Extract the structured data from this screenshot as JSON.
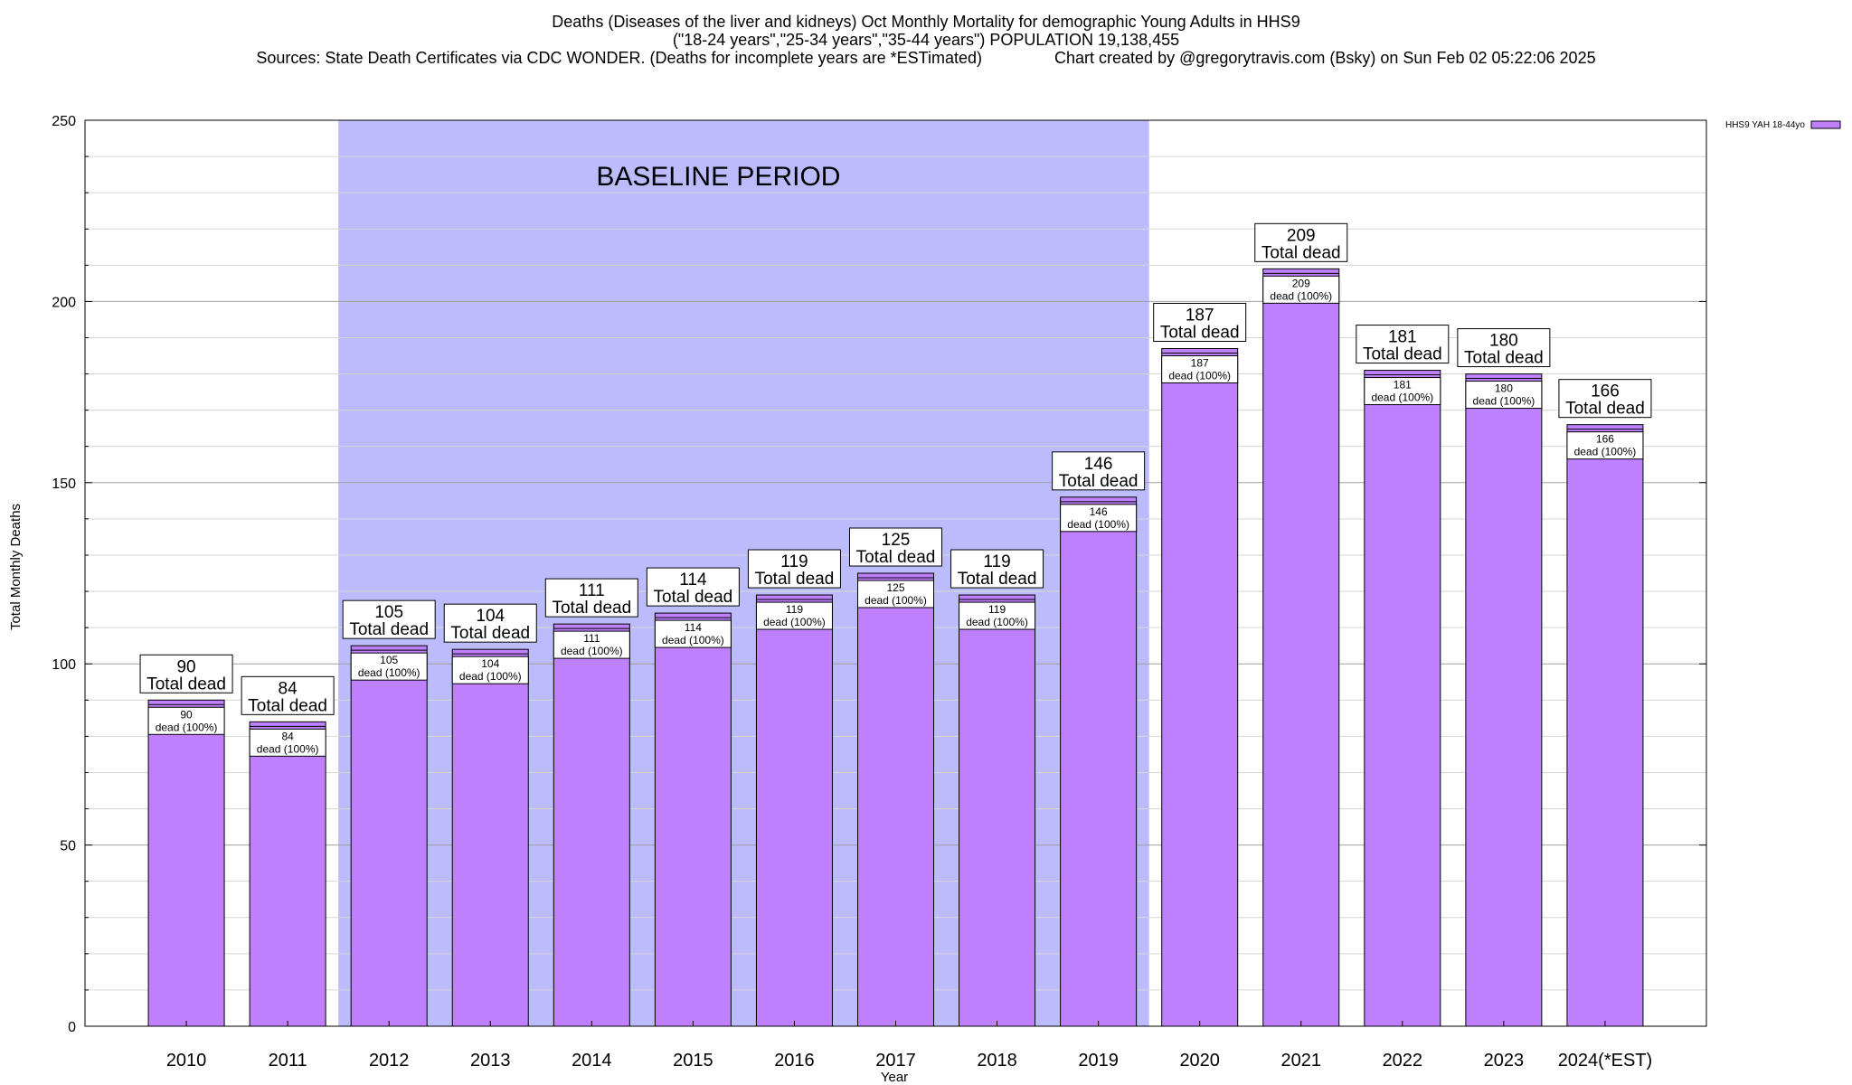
{
  "chart_data": {
    "type": "bar",
    "title_lines": [
      "Deaths (Diseases of the liver and kidneys) Oct Monthly Mortality for demographic Young Adults in HHS9",
      "(\"18-24 years\",\"25-34 years\",\"35-44 years\") POPULATION 19,138,455",
      "Sources: State Death Certificates via CDC WONDER. (Deaths for incomplete years are *ESTimated)                Chart created by @gregorytravis.com (Bsky) on Sun Feb 02 05:22:06 2025"
    ],
    "xlabel": "Year",
    "ylabel": "Total Monthly Deaths",
    "ylim": [
      0,
      250
    ],
    "yticks": [
      0,
      50,
      100,
      150,
      200,
      250
    ],
    "minor_grid_step": 10,
    "grid": true,
    "categories": [
      "2010",
      "2011",
      "2012",
      "2013",
      "2014",
      "2015",
      "2016",
      "2017",
      "2018",
      "2019",
      "2020",
      "2021",
      "2022",
      "2023",
      "2024(*EST)"
    ],
    "series": [
      {
        "name": "HHS9 YAH 18-44yo",
        "color": "#bf80ff",
        "values": [
          90,
          84,
          105,
          104,
          111,
          114,
          119,
          125,
          119,
          146,
          187,
          209,
          181,
          180,
          166
        ]
      }
    ],
    "total_label_suffix": "Total dead",
    "inner_label_suffix": "dead (100%)",
    "baseline_region": {
      "label": "BASELINE PERIOD",
      "start_category": "2012",
      "end_category": "2019",
      "color": "#bcbcfc"
    },
    "legend_position": "top-right"
  }
}
